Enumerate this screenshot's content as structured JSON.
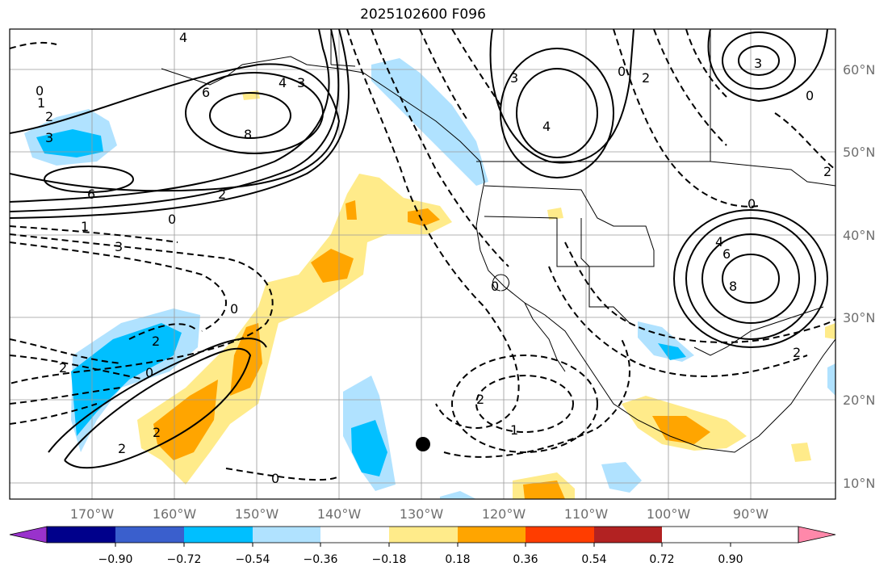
{
  "title": "2025102600 F096",
  "map": {
    "lat_ticks": [
      "60°N",
      "50°N",
      "40°N",
      "30°N",
      "20°N",
      "10°N"
    ],
    "lon_ticks": [
      "170°W",
      "160°W",
      "150°W",
      "140°W",
      "130°W",
      "120°W",
      "110°W",
      "100°W",
      "90°W"
    ],
    "marker": {
      "name": "location-dot",
      "color": "#000000"
    }
  },
  "colorbar": {
    "colors": [
      "#9932cc",
      "#00008b",
      "#3a5fcd",
      "#00bfff",
      "#b0e2ff",
      "#ffffff",
      "#ffeb8a",
      "#ffa500",
      "#ff3d00",
      "#b22222",
      "#ff88aa"
    ],
    "tick_labels": [
      "−0.90",
      "−0.72",
      "−0.54",
      "−0.36",
      "−0.18",
      "0.18",
      "0.36",
      "0.54",
      "0.72",
      "0.90"
    ]
  },
  "contour_labels": [
    "4",
    "0",
    "1",
    "2",
    "3",
    "6",
    "8",
    "4",
    "3",
    "6",
    "2",
    "0",
    "1",
    "3",
    "0",
    "2",
    "0",
    "2",
    "2",
    "2",
    "1",
    "0",
    "2",
    "0",
    "3",
    "2",
    "0",
    "3",
    "0",
    "4",
    "4",
    "6",
    "8",
    "0",
    "2",
    "2"
  ]
}
